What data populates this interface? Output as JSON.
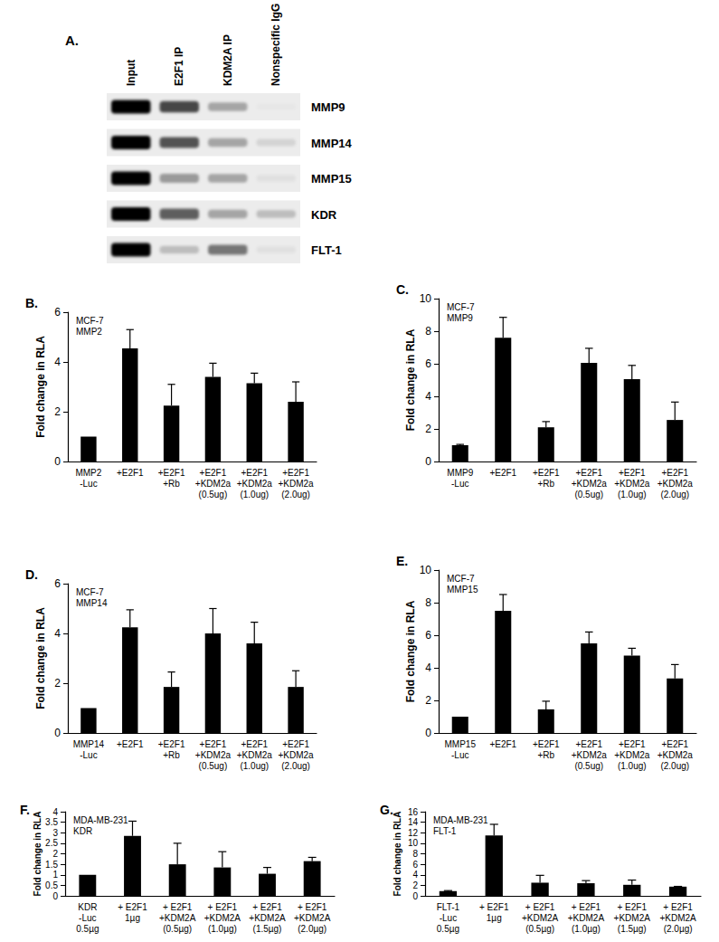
{
  "gel": {
    "panel": "A.",
    "columns": [
      "Input",
      "E2F1  IP",
      "KDM2A  IP",
      "Nonspecific IgG"
    ],
    "rows": [
      {
        "label": "MMP9",
        "intensity": [
          1.0,
          0.7,
          0.3,
          0.02
        ]
      },
      {
        "label": "MMP14",
        "intensity": [
          1.0,
          0.65,
          0.3,
          0.1
        ]
      },
      {
        "label": "MMP15",
        "intensity": [
          1.0,
          0.35,
          0.3,
          0.05
        ]
      },
      {
        "label": "KDR",
        "intensity": [
          1.0,
          0.6,
          0.3,
          0.2
        ]
      },
      {
        "label": "FLT-1",
        "intensity": [
          1.0,
          0.2,
          0.5,
          0.05
        ]
      }
    ]
  },
  "chart_data": [
    {
      "type": "bar",
      "panel": "B.",
      "annotation": "MCF-7\nMMP2",
      "ylabel": "Fold change in RLA",
      "categories": [
        "MMP2\n-Luc",
        "+E2F1",
        "+E2F1\n+Rb",
        "+E2F1\n+KDM2a\n(0.5ug)",
        "+E2F1\n+KDM2a\n(1.0ug)",
        "+E2F1\n+KDM2a\n(2.0ug)"
      ],
      "values": [
        1,
        4.55,
        2.25,
        3.4,
        3.15,
        2.4
      ],
      "errors": [
        0,
        0.75,
        0.85,
        0.55,
        0.4,
        0.8
      ],
      "color": "#000000",
      "ylim": [
        0,
        6
      ],
      "yticks": [
        0,
        2,
        4,
        6
      ],
      "grid": false
    },
    {
      "type": "bar",
      "panel": "C.",
      "annotation": "MCF-7\nMMP9",
      "ylabel": "Fold change in RLA",
      "categories": [
        "MMP9\n-Luc",
        "+E2F1",
        "+E2F1\n+Rb",
        "+E2F1\n+KDM2a\n(0.5ug)",
        "+E2F1\n+KDM2a\n(1.0ug)",
        "+E2F1\n+KDM2a\n(2.0ug)"
      ],
      "values": [
        1,
        7.6,
        2.1,
        6.05,
        5.05,
        2.55
      ],
      "errors": [
        0.05,
        1.25,
        0.35,
        0.9,
        0.85,
        1.1
      ],
      "color": "#000000",
      "ylim": [
        0,
        10
      ],
      "yticks": [
        0,
        2,
        4,
        6,
        8,
        10
      ],
      "grid": false
    },
    {
      "type": "bar",
      "panel": "D.",
      "annotation": "MCF-7\nMMP14",
      "ylabel": "Fold change in RLA",
      "categories": [
        "MMP14\n-Luc",
        "+E2F1",
        "+E2F1\n+Rb",
        "+E2F1\n+KDM2a\n(0.5ug)",
        "+E2F1\n+KDM2a\n(1.0ug)",
        "+E2F1\n+KDM2a\n(2.0ug)"
      ],
      "values": [
        1,
        4.25,
        1.85,
        4.0,
        3.6,
        1.85
      ],
      "errors": [
        0,
        0.7,
        0.6,
        1.0,
        0.85,
        0.65
      ],
      "color": "#000000",
      "ylim": [
        0,
        6
      ],
      "yticks": [
        0,
        2,
        4,
        6
      ],
      "grid": false
    },
    {
      "type": "bar",
      "panel": "E.",
      "annotation": "MCF-7\nMMP15",
      "ylabel": "Fold change in RLA",
      "categories": [
        "MMP15\n-Luc",
        "+E2F1",
        "+E2F1\n+Rb",
        "+E2F1\n+KDM2a\n(0.5ug)",
        "+E2F1\n+KDM2a\n(1.0ug)",
        "+E2F1\n+KDM2a\n(2.0ug)"
      ],
      "values": [
        1,
        7.5,
        1.45,
        5.5,
        4.75,
        3.35
      ],
      "errors": [
        0,
        1.0,
        0.5,
        0.7,
        0.45,
        0.85
      ],
      "color": "#000000",
      "ylim": [
        0,
        10
      ],
      "yticks": [
        0,
        2,
        4,
        6,
        8,
        10
      ],
      "grid": false
    },
    {
      "type": "bar",
      "panel": "F.",
      "annotation": "MDA-MB-231\nKDR",
      "ylabel": "Fold change in RLA",
      "categories": [
        "KDR\n-Luc\n0.5µg",
        "+ E2F1\n1µg",
        "+ E2F1\n+KDM2A\n(0.5µg)",
        "+ E2F1\n+KDM2A\n(1.0µg)",
        "+ E2F1\n+KDM2A\n(1.5µg)",
        "+ E2F1\n+KDM2A\n(2.0µg)"
      ],
      "values": [
        1,
        2.85,
        1.5,
        1.35,
        1.05,
        1.65
      ],
      "errors": [
        0,
        0.7,
        1.0,
        0.75,
        0.3,
        0.18
      ],
      "color": "#000000",
      "ylim": [
        0,
        4
      ],
      "yticks": [
        0,
        0.5,
        1,
        1.5,
        2,
        2.5,
        3,
        3.5,
        4
      ],
      "grid": false
    },
    {
      "type": "bar",
      "panel": "G.",
      "annotation": "MDA-MB-231\nFLT-1",
      "ylabel": "Fold change in RLA",
      "categories": [
        "FLT-1\n-Luc\n0.5µg",
        "+ E2F1\n1µg",
        "+ E2F1\n+KDM2A\n(0.5µg)",
        "+ E2F1\n+KDM2A\n(1.0µg)",
        "+ E2F1\n+KDM2A\n(1.5µg)",
        "+ E2F1\n+KDM2A\n(2.0µg)"
      ],
      "values": [
        0.9,
        11.5,
        2.5,
        2.4,
        2.1,
        1.75
      ],
      "errors": [
        0.1,
        2.1,
        1.4,
        0.5,
        0.9,
        0.05
      ],
      "color": "#000000",
      "ylim": [
        0,
        16
      ],
      "yticks": [
        0,
        2,
        4,
        6,
        8,
        10,
        12,
        14,
        16
      ],
      "grid": false
    }
  ]
}
